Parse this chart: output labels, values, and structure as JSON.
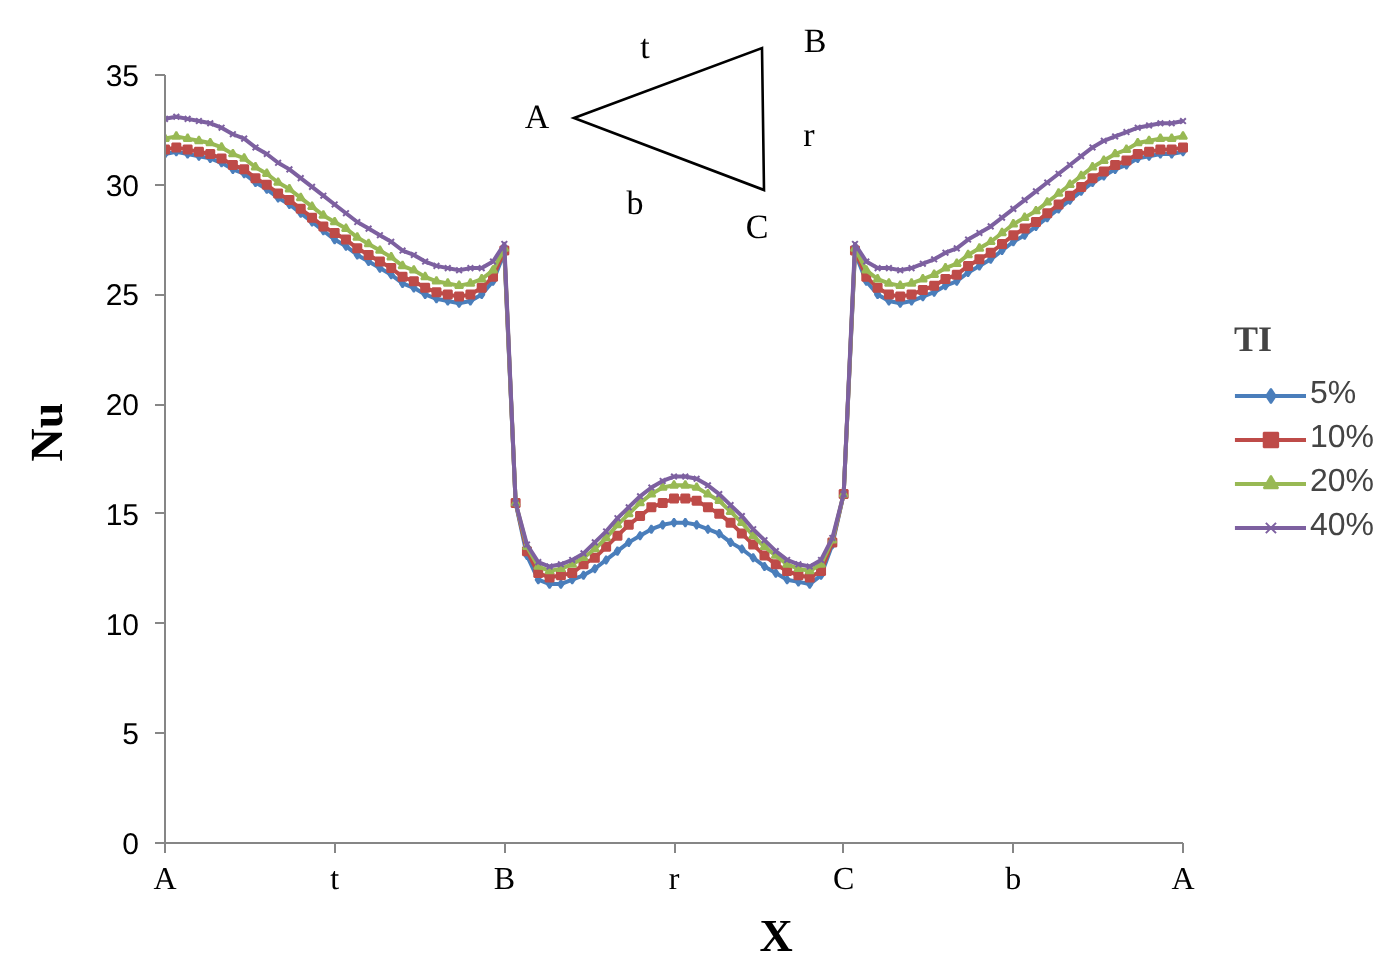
{
  "chart_data": {
    "type": "line",
    "xlabel": "X",
    "ylabel": "Nu",
    "legend_title": "TI",
    "categories": [
      "A",
      null,
      null,
      null,
      null,
      null,
      null,
      null,
      null,
      null,
      null,
      null,
      null,
      null,
      null,
      "t",
      null,
      null,
      null,
      null,
      null,
      null,
      null,
      null,
      null,
      null,
      null,
      null,
      null,
      null,
      "B",
      null,
      null,
      null,
      null,
      null,
      null,
      null,
      null,
      null,
      null,
      null,
      null,
      null,
      null,
      "r",
      null,
      null,
      null,
      null,
      null,
      null,
      null,
      null,
      null,
      null,
      null,
      null,
      null,
      null,
      "C",
      null,
      null,
      null,
      null,
      null,
      null,
      null,
      null,
      null,
      null,
      null,
      null,
      null,
      null,
      "b",
      null,
      null,
      null,
      null,
      null,
      null,
      null,
      null,
      null,
      null,
      null,
      null,
      null,
      null,
      "A"
    ],
    "ylim": [
      0,
      35
    ],
    "yticks": [
      0,
      5,
      10,
      15,
      20,
      25,
      30,
      35
    ],
    "grid": false,
    "legend": "right",
    "line_style": "solid",
    "series": [
      {
        "name": "5%",
        "color": "#4a7ebb",
        "marker": "diamond",
        "values": [
          31.4,
          31.5,
          31.4,
          31.3,
          31.2,
          31.0,
          30.7,
          30.5,
          30.1,
          29.8,
          29.4,
          29.1,
          28.7,
          28.3,
          27.9,
          27.5,
          27.2,
          26.8,
          26.5,
          26.2,
          25.9,
          25.5,
          25.3,
          25.0,
          24.8,
          24.7,
          24.6,
          24.7,
          25.0,
          25.6,
          26.9,
          15.5,
          13.1,
          12.0,
          11.8,
          11.8,
          12.0,
          12.2,
          12.5,
          12.9,
          13.3,
          13.7,
          14.0,
          14.3,
          14.5,
          14.6,
          14.6,
          14.5,
          14.3,
          14.1,
          13.7,
          13.4,
          13.0,
          12.6,
          12.3,
          12.0,
          11.9,
          11.8,
          12.2,
          13.6,
          15.9,
          26.9,
          25.6,
          25.0,
          24.7,
          24.6,
          24.7,
          24.9,
          25.1,
          25.4,
          25.6,
          26.0,
          26.3,
          26.6,
          27.0,
          27.4,
          27.7,
          28.1,
          28.5,
          28.9,
          29.3,
          29.7,
          30.1,
          30.4,
          30.7,
          30.9,
          31.2,
          31.3,
          31.4,
          31.4,
          31.5
        ]
      },
      {
        "name": "10%",
        "color": "#be4b48",
        "marker": "square",
        "values": [
          31.6,
          31.7,
          31.6,
          31.5,
          31.4,
          31.2,
          30.9,
          30.7,
          30.3,
          30.0,
          29.6,
          29.3,
          28.9,
          28.5,
          28.1,
          27.8,
          27.5,
          27.1,
          26.8,
          26.5,
          26.2,
          25.8,
          25.6,
          25.3,
          25.1,
          25.0,
          24.9,
          25.0,
          25.3,
          25.8,
          27.0,
          15.5,
          13.3,
          12.3,
          12.1,
          12.2,
          12.3,
          12.7,
          13.0,
          13.5,
          14.0,
          14.5,
          14.9,
          15.3,
          15.5,
          15.7,
          15.7,
          15.6,
          15.3,
          15.0,
          14.6,
          14.1,
          13.6,
          13.1,
          12.7,
          12.4,
          12.2,
          12.1,
          12.4,
          13.7,
          15.9,
          27.0,
          25.8,
          25.3,
          25.0,
          24.9,
          25.0,
          25.2,
          25.4,
          25.7,
          25.9,
          26.3,
          26.6,
          26.9,
          27.3,
          27.7,
          28.0,
          28.3,
          28.7,
          29.1,
          29.5,
          29.9,
          30.3,
          30.6,
          30.9,
          31.1,
          31.4,
          31.5,
          31.6,
          31.6,
          31.7
        ]
      },
      {
        "name": "20%",
        "color": "#98b954",
        "marker": "triangle",
        "values": [
          32.1,
          32.2,
          32.1,
          32.0,
          31.9,
          31.7,
          31.4,
          31.2,
          30.8,
          30.5,
          30.1,
          29.8,
          29.4,
          29.0,
          28.6,
          28.3,
          28.0,
          27.6,
          27.3,
          27.0,
          26.7,
          26.3,
          26.1,
          25.8,
          25.6,
          25.5,
          25.4,
          25.5,
          25.7,
          26.1,
          27.1,
          15.5,
          13.5,
          12.6,
          12.4,
          12.5,
          12.7,
          13.0,
          13.4,
          13.9,
          14.5,
          15.0,
          15.5,
          15.9,
          16.2,
          16.3,
          16.3,
          16.2,
          15.9,
          15.6,
          15.1,
          14.6,
          14.0,
          13.5,
          13.1,
          12.7,
          12.5,
          12.4,
          12.7,
          13.8,
          15.9,
          27.1,
          26.1,
          25.7,
          25.5,
          25.4,
          25.5,
          25.7,
          25.9,
          26.2,
          26.4,
          26.8,
          27.1,
          27.4,
          27.8,
          28.2,
          28.5,
          28.8,
          29.2,
          29.6,
          30.0,
          30.4,
          30.8,
          31.1,
          31.4,
          31.6,
          31.9,
          32.0,
          32.1,
          32.1,
          32.2
        ]
      },
      {
        "name": "40%",
        "color": "#7d60a0",
        "marker": "cross",
        "values": [
          33.0,
          33.1,
          33.0,
          32.9,
          32.8,
          32.6,
          32.3,
          32.1,
          31.7,
          31.4,
          31.0,
          30.7,
          30.3,
          29.9,
          29.5,
          29.1,
          28.7,
          28.3,
          28.0,
          27.7,
          27.4,
          27.0,
          26.8,
          26.5,
          26.3,
          26.2,
          26.1,
          26.2,
          26.2,
          26.5,
          27.3,
          15.5,
          13.6,
          12.8,
          12.6,
          12.7,
          12.9,
          13.2,
          13.7,
          14.2,
          14.8,
          15.3,
          15.8,
          16.2,
          16.5,
          16.7,
          16.7,
          16.6,
          16.3,
          15.9,
          15.4,
          14.9,
          14.3,
          13.8,
          13.3,
          12.9,
          12.7,
          12.6,
          12.9,
          13.9,
          15.9,
          27.3,
          26.5,
          26.2,
          26.2,
          26.1,
          26.2,
          26.4,
          26.6,
          26.9,
          27.1,
          27.5,
          27.8,
          28.1,
          28.5,
          28.9,
          29.3,
          29.7,
          30.1,
          30.5,
          30.9,
          31.3,
          31.7,
          32.0,
          32.2,
          32.4,
          32.6,
          32.7,
          32.8,
          32.8,
          32.9
        ]
      }
    ],
    "annotations": [
      "A",
      "t",
      "B",
      "r",
      "C",
      "b"
    ]
  }
}
